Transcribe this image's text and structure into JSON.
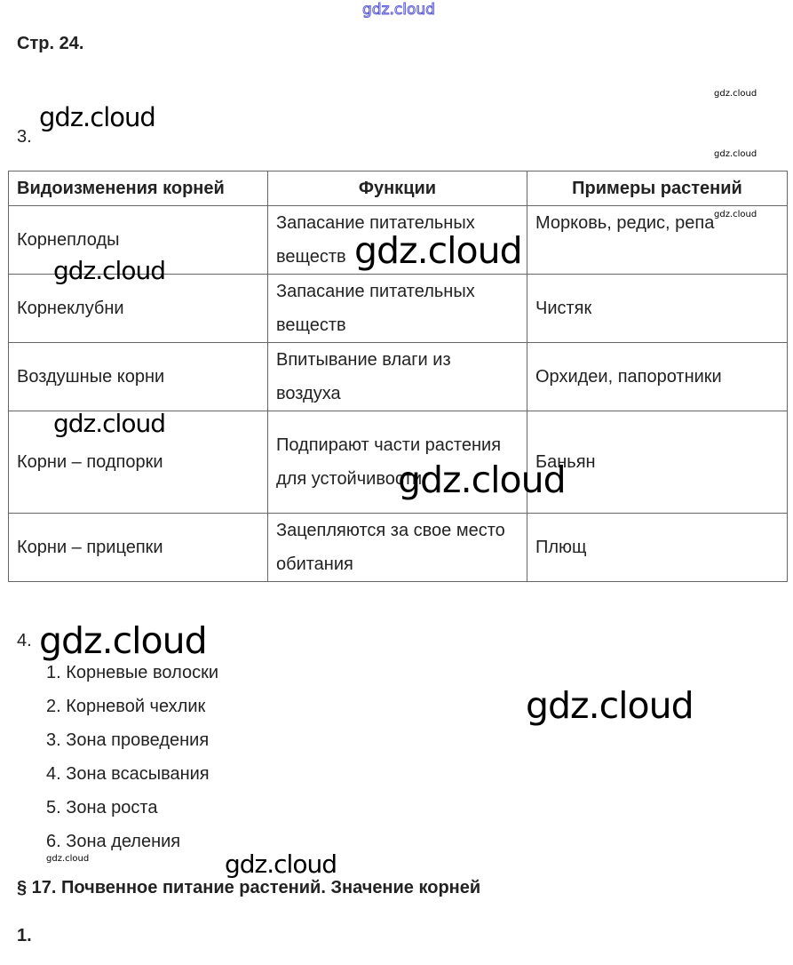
{
  "header": {
    "page_label": "Стр. 24."
  },
  "task3": {
    "number": "3.",
    "table": {
      "headers": [
        "Видоизменения корней",
        "Функции",
        "Примеры растений"
      ],
      "rows": [
        [
          "Корнеплоды",
          "Запасание питательных веществ",
          "Морковь, редис, репа"
        ],
        [
          "Корнеклубни",
          "Запасание питательных веществ",
          "Чистяк"
        ],
        [
          "Воздушные корни",
          "Впитывание влаги из воздуха",
          "Орхидеи, папоротники"
        ],
        [
          "Корни – подпорки",
          "Подпирают части растения для устойчивости",
          "Баньян"
        ],
        [
          "Корни – прицепки",
          "Зацепляются за свое место обитания",
          "Плющ"
        ]
      ]
    }
  },
  "task4": {
    "number": "4.",
    "items": [
      "1. Корневые волоски",
      "2. Корневой чехлик",
      "3. Зона проведения",
      "4. Зона всасывания",
      "5. Зона роста",
      "6. Зона деления"
    ]
  },
  "section": {
    "title": "§ 17. Почвенное питание растений. Значение корней",
    "first_number": "1."
  },
  "watermark": "gdz.cloud",
  "colors": {
    "text": "#222222",
    "watermark_top": "#5a5ad8"
  }
}
